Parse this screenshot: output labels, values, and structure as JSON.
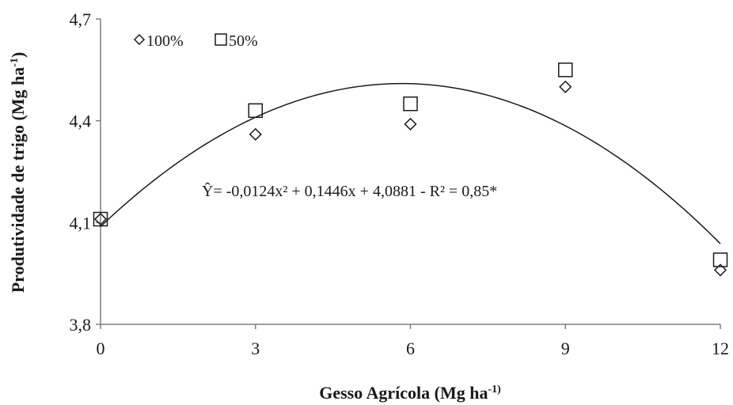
{
  "chart_data": {
    "type": "scatter",
    "xlabel": "Gesso Agrícola (Mg ha",
    "xlabel_sup": "-1)",
    "ylabel": "Produtividade de trigo (Mg ha",
    "ylabel_sup": "-1",
    "ylabel_end": ")",
    "x_ticks": [
      0,
      3,
      6,
      9,
      12
    ],
    "x_tick_labels": [
      "0",
      "3",
      "6",
      "9",
      "12"
    ],
    "y_ticks": [
      3.8,
      4.1,
      4.4,
      4.7
    ],
    "y_tick_labels": [
      "3,8",
      "4,1",
      "4,4",
      "4,7"
    ],
    "xlim": [
      0,
      12
    ],
    "ylim": [
      3.8,
      4.7
    ],
    "grid": false,
    "legend_position": "top-left",
    "series": [
      {
        "name": "100%",
        "marker": "diamond",
        "x": [
          0,
          3,
          6,
          9,
          12
        ],
        "y": [
          4.11,
          4.36,
          4.39,
          4.5,
          3.96
        ]
      },
      {
        "name": "50%",
        "marker": "square",
        "x": [
          0,
          3,
          6,
          9,
          12
        ],
        "y": [
          4.11,
          4.43,
          4.45,
          4.55,
          3.99
        ]
      }
    ],
    "trendline": {
      "type": "polynomial",
      "coefficients": [
        -0.0124,
        0.1446,
        4.0881
      ],
      "x_range": [
        0,
        12
      ]
    },
    "equation": "Ŷ= -0,0124x² + 0,1446x + 4,0881 - R² = 0,85*",
    "colors": {
      "axis": "#7f7f7f",
      "marker": "#1a1a1a",
      "curve": "#1a1a1a"
    }
  }
}
